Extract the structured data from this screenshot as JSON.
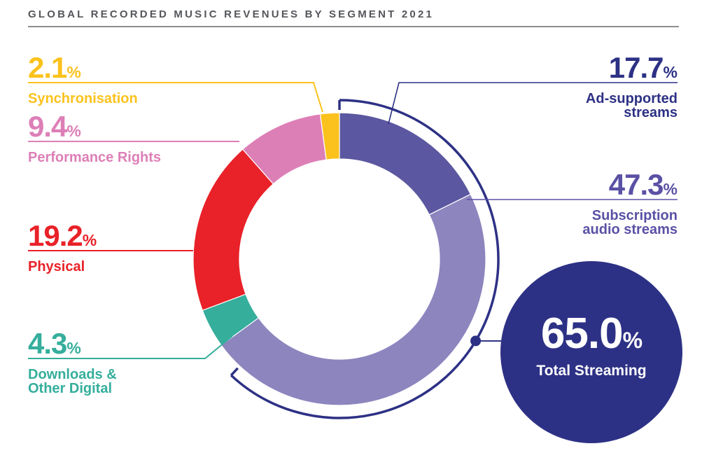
{
  "title": "GLOBAL RECORDED MUSIC REVENUES BY SEGMENT 2021",
  "percent_sign": "%",
  "chart_data": {
    "type": "pie",
    "subtype": "donut",
    "title": "Global Recorded Music Revenues by Segment 2021",
    "units": "%",
    "start_angle_deg": 0,
    "direction": "clockwise",
    "legend_position": "callouts",
    "slices": [
      {
        "id": "ad-supported-streams",
        "name": "Ad-supported streams",
        "name_lines": [
          "Ad-supported",
          "streams"
        ],
        "value": 17.7,
        "display": "17.7",
        "color": "#5B57A0",
        "label_color": "#2D3185"
      },
      {
        "id": "subscription-audio-streams",
        "name": "Subscription audio streams",
        "name_lines": [
          "Subscription",
          "audio streams"
        ],
        "value": 47.3,
        "display": "47.3",
        "color": "#8C85BE",
        "label_color": "#5A51A5"
      },
      {
        "id": "downloads-other-digital",
        "name": "Downloads & Other Digital",
        "name_lines": [
          "Downloads &",
          "Other Digital"
        ],
        "value": 4.3,
        "display": "4.3",
        "color": "#35AE9C",
        "label_color": "#35AE9C"
      },
      {
        "id": "physical",
        "name": "Physical",
        "name_lines": [
          "Physical"
        ],
        "value": 19.2,
        "display": "19.2",
        "color": "#E92128",
        "label_color": "#E92128"
      },
      {
        "id": "performance-rights",
        "name": "Performance Rights",
        "name_lines": [
          "Performance Rights"
        ],
        "value": 9.4,
        "display": "9.4",
        "color": "#DD7FB7",
        "label_color": "#DD7FB7"
      },
      {
        "id": "synchronisation",
        "name": "Synchronisation",
        "name_lines": [
          "Synchronisation"
        ],
        "value": 2.1,
        "display": "2.1",
        "color": "#FBC21D",
        "label_color": "#FBC21D"
      }
    ],
    "annotation_total": {
      "name": "Total Streaming",
      "value": 65.0,
      "display": "65.0",
      "color": "#2D3185",
      "includes": [
        "Ad-supported streams",
        "Subscription audio streams"
      ]
    }
  }
}
